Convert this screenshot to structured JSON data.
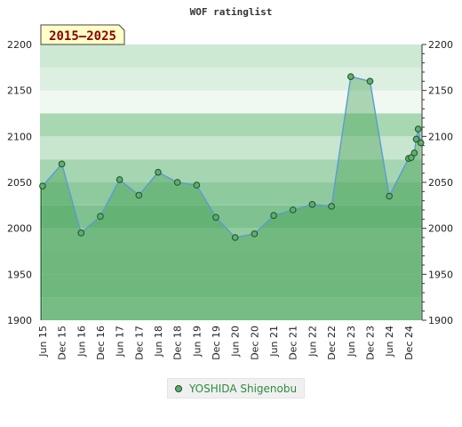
{
  "chart_data": {
    "type": "area",
    "title": "WOF ratinglist",
    "period_label": "2015–2025",
    "ylim": [
      1900,
      2200
    ],
    "yticks": [
      1900,
      1950,
      2000,
      2050,
      2100,
      2150,
      2200
    ],
    "x_tick_labels": [
      "Jun 15",
      "Dec 15",
      "Jun 16",
      "Dec 16",
      "Jun 17",
      "Dec 17",
      "Jun 18",
      "Dec 18",
      "Jun 19",
      "Dec 19",
      "Jun 20",
      "Dec 20",
      "Jun 21",
      "Dec 21",
      "Jun 22",
      "Dec 22",
      "Jun 23",
      "Dec 23",
      "Jun 24",
      "Dec 24"
    ],
    "xlim": [
      2015.333,
      2025.25
    ],
    "legend_position": "bottom",
    "series": [
      {
        "name": "YOSHIDA Shigenobu",
        "color": "#5fae6e",
        "x": [
          2015.4,
          2015.9,
          2016.4,
          2016.9,
          2017.4,
          2017.9,
          2018.4,
          2018.9,
          2019.4,
          2019.9,
          2020.4,
          2020.9,
          2021.4,
          2021.9,
          2022.4,
          2022.9,
          2023.4,
          2023.9,
          2024.4,
          2024.9,
          2024.97,
          2025.05,
          2025.1,
          2025.15,
          2025.22
        ],
        "y": [
          2046,
          2070,
          1995,
          2013,
          2053,
          2036,
          2061,
          2050,
          2047,
          2012,
          1990,
          1994,
          2014,
          2020,
          2026,
          2024,
          2165,
          2160,
          2035,
          2076,
          2077,
          2082,
          2097,
          2108,
          2093
        ]
      }
    ]
  }
}
